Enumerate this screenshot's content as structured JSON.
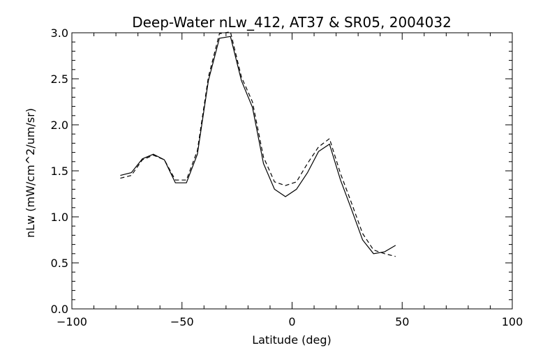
{
  "chart_data": {
    "type": "line",
    "title": "Deep-Water nLw_412, AT37 & SR05, 2004032",
    "xlabel": "Latitude (deg)",
    "ylabel": "nLw (mW/cm^2/um/sr)",
    "xlim": [
      -100,
      100
    ],
    "ylim": [
      0,
      3
    ],
    "xticks": [
      -100,
      -50,
      0,
      50,
      100
    ],
    "xtick_labels": [
      "−100",
      "−50",
      "0",
      "50",
      "100"
    ],
    "yticks": [
      0.0,
      0.5,
      1.0,
      1.5,
      2.0,
      2.5,
      3.0
    ],
    "ytick_labels": [
      "0.0",
      "0.5",
      "1.0",
      "1.5",
      "2.0",
      "2.5",
      "3.0"
    ],
    "grid": false,
    "series": [
      {
        "line_style": "solid",
        "x": [
          -78,
          -73,
          -68,
          -63,
          -58,
          -53,
          -48,
          -43,
          -38,
          -33,
          -28,
          -23,
          -18,
          -13,
          -8,
          -3,
          2,
          7,
          12,
          17,
          22,
          27,
          32,
          37,
          42,
          47
        ],
        "y": [
          1.45,
          1.48,
          1.63,
          1.68,
          1.62,
          1.37,
          1.37,
          1.68,
          2.48,
          2.94,
          2.96,
          2.48,
          2.19,
          1.58,
          1.3,
          1.22,
          1.3,
          1.48,
          1.71,
          1.79,
          1.4,
          1.08,
          0.75,
          0.6,
          0.62,
          0.69
        ]
      },
      {
        "line_style": "dashed",
        "x": [
          -78,
          -73,
          -68,
          -63,
          -58,
          -53,
          -48,
          -43,
          -38,
          -33,
          -28,
          -23,
          -18,
          -13,
          -8,
          -3,
          2,
          7,
          12,
          17,
          22,
          27,
          32,
          37,
          42,
          47
        ],
        "y": [
          1.42,
          1.45,
          1.62,
          1.67,
          1.62,
          1.4,
          1.4,
          1.72,
          2.52,
          2.99,
          3.01,
          2.52,
          2.25,
          1.65,
          1.38,
          1.34,
          1.38,
          1.58,
          1.76,
          1.85,
          1.47,
          1.15,
          0.82,
          0.64,
          0.6,
          0.57
        ]
      }
    ],
    "colors": {
      "axis": "#000000",
      "background": "#ffffff",
      "lines": "#000000"
    }
  }
}
